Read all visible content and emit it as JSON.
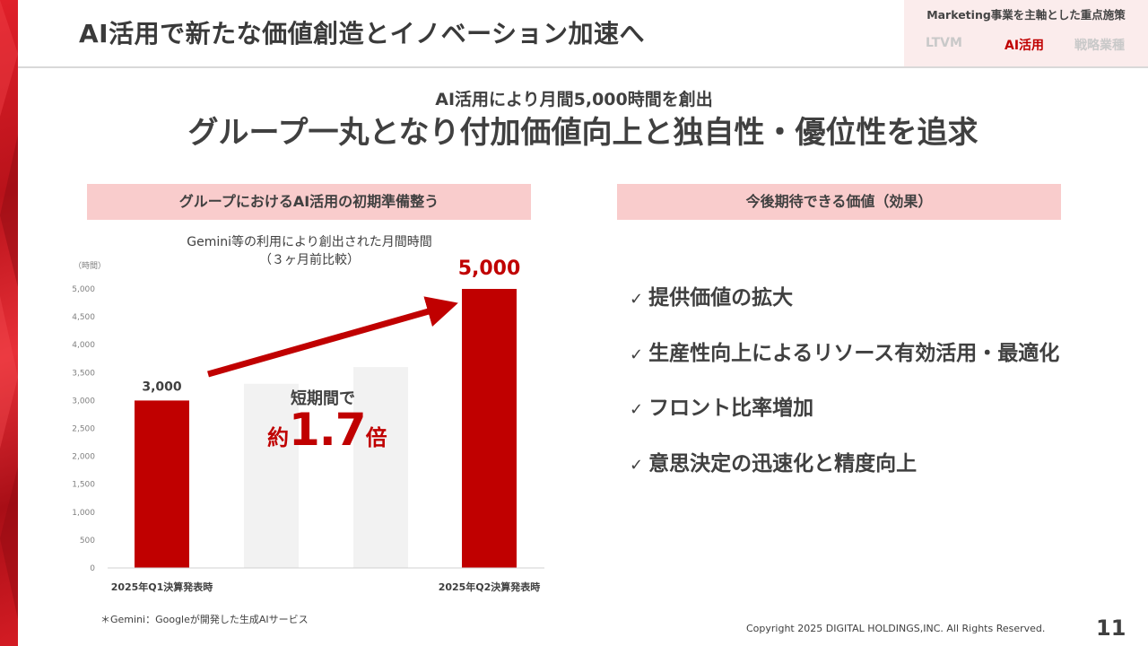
{
  "page": {
    "title": "AI活用で新たな価値創造とイノベーション加速へ",
    "page_number": "11",
    "copyright": "Copyright 2025 DIGITAL HOLDINGS,INC. All Rights Reserved."
  },
  "nav": {
    "title": "Marketing事業を主軸とした重点施策",
    "tabs": [
      {
        "label": "LTVM",
        "active": false
      },
      {
        "label": "AI活用",
        "active": true
      },
      {
        "label": "戦略業種",
        "active": false
      }
    ],
    "accent": "#c00000"
  },
  "headline": {
    "sub": "AI活用により月間5,000時間を創出",
    "main": "グループ一丸となり付加価値向上と独自性・優位性を追求"
  },
  "left_section": {
    "header": "グループにおけるAI活用の初期準備整う",
    "caption_line1": "Gemini等の利用により創出された月間時間",
    "caption_line2": "（３ヶ月前比較）",
    "multiplier_lead": "短期間で",
    "multiplier_prefix": "約",
    "multiplier_value": "1.7",
    "multiplier_suffix": "倍",
    "footnote": "＊Gemini：Googleが開発した生成AIサービス"
  },
  "chart_data": {
    "type": "bar",
    "unit_label": "（時間）",
    "categories": [
      "2025年Q1決算発表時",
      "",
      "",
      "2025年Q2決算発表時"
    ],
    "values": [
      3000,
      3300,
      3600,
      5000
    ],
    "data_labels": [
      "3,000",
      "",
      "",
      "5,000"
    ],
    "colors": [
      "#c00000",
      "#f2f2f2",
      "#f2f2f2",
      "#c00000"
    ],
    "ylim": [
      0,
      5000
    ],
    "yticks": [
      "0",
      "500",
      "1,000",
      "1,500",
      "2,000",
      "2,500",
      "3,000",
      "3,500",
      "4,000",
      "4,500",
      "5,000"
    ],
    "grid": false,
    "legend": "none"
  },
  "right_section": {
    "header": "今後期待できる価値（効果）",
    "check_glyph": "✓",
    "items": [
      "提供価値の拡大",
      "生産性向上によるリソース有効活用・最適化",
      "フロント比率増加",
      "意思決定の迅速化と精度向上"
    ]
  }
}
